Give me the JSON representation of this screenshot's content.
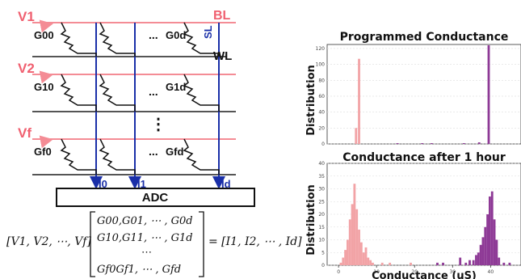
{
  "crossbar": {
    "voltages": [
      "V1",
      "V2",
      "Vf"
    ],
    "bitline_label": "BL",
    "sourceline_label": "SL",
    "wordline_label": "WL",
    "conductances": [
      [
        "G00",
        "G0d"
      ],
      [
        "G10",
        "G1d"
      ],
      [
        "Gf0",
        "Gfd"
      ]
    ],
    "ellipsis_h": "...",
    "ellipsis_v": "⋮",
    "currents": [
      "I0",
      "I1",
      "Id"
    ],
    "adc_label": "ADC"
  },
  "equation": {
    "lhs": "[V1, V2, ⋯, Vf]",
    "matrix_rows": [
      "G00,G01, ⋯ , G0d",
      "G10,G11, ⋯ , G1d",
      "⋯",
      "Gf0Gf1, ⋯ , Gfd"
    ],
    "rhs": "= [I1, I2, ⋯ , Id]"
  },
  "colors": {
    "voltage_line": "#f48c95",
    "bitline": "#1a2fa8",
    "wordline": "#555555",
    "series_programmed_low": "#f2a3a6",
    "series_programmed_high": "#8e3a96"
  },
  "chart_data": [
    {
      "type": "bar",
      "title": "Programmed Conductance",
      "xlabel": "",
      "ylabel": "Distribution",
      "xlim": [
        -3,
        48
      ],
      "ylim": [
        0,
        125
      ],
      "yticks": [
        0,
        20,
        40,
        60,
        80,
        100,
        120
      ],
      "xticks": [],
      "grid": true,
      "series": [
        {
          "color": "#f2a3a6",
          "x": [
            4.6,
            5.4
          ],
          "values": [
            20,
            107
          ]
        },
        {
          "color": "#8e3a96",
          "x": [
            15.5,
            22,
            24.5,
            33,
            37,
            39.5
          ],
          "values": [
            1,
            1,
            1,
            1,
            2,
            124
          ]
        }
      ]
    },
    {
      "type": "bar",
      "title": "Conductance after 1 hour",
      "xlabel": "Conductance (uS)",
      "ylabel": "Distribution",
      "xlim": [
        -3,
        48
      ],
      "ylim": [
        0,
        40
      ],
      "yticks": [
        0,
        5,
        10,
        15,
        20,
        25,
        30,
        35,
        40
      ],
      "xticks": [
        0,
        10,
        20,
        30,
        40
      ],
      "grid": true,
      "series": [
        {
          "color": "#f2a3a6",
          "x": [
            0.6,
            1.2,
            1.8,
            2.4,
            3.0,
            3.6,
            4.2,
            4.8,
            5.4,
            6.0,
            6.6,
            7.2,
            7.8,
            8.4,
            9.0,
            11.5,
            13.5,
            19.0
          ],
          "values": [
            1,
            3,
            6,
            10,
            18,
            24,
            32,
            22,
            14,
            9,
            5,
            7,
            3,
            2,
            1,
            1,
            1,
            1
          ]
        },
        {
          "color": "#8e3a96",
          "x": [
            26.0,
            27.5,
            32.0,
            33.5,
            34.5,
            35.5,
            36.2,
            36.8,
            37.4,
            38.0,
            38.6,
            39.2,
            39.8,
            40.4,
            41.0,
            41.6,
            42.2,
            43.5,
            45.0
          ],
          "values": [
            1,
            1,
            3,
            1,
            2,
            2,
            4,
            5,
            8,
            11,
            15,
            20,
            27,
            29,
            18,
            10,
            3,
            1,
            1
          ]
        }
      ]
    }
  ]
}
